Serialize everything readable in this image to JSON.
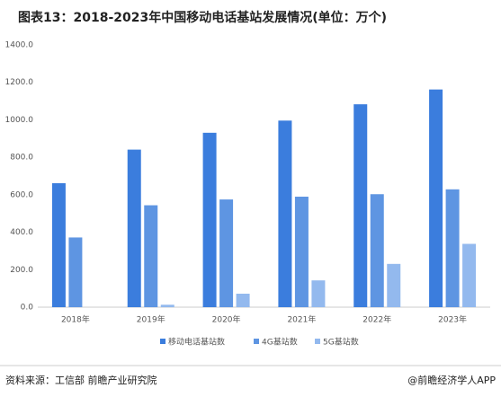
{
  "chart_data": {
    "type": "bar",
    "title": "图表13：2018-2023年中国移动电话基站发展情况(单位：万个)",
    "categories": [
      "2018年",
      "2019年",
      "2020年",
      "2021年",
      "2022年",
      "2023年"
    ],
    "series": [
      {
        "name": "移动电话基站数",
        "color": "#3b7ddd",
        "values": [
          662,
          841,
          931,
          996,
          1083,
          1162
        ]
      },
      {
        "name": "4G基站数",
        "color": "#5e95e2",
        "values": [
          372,
          544,
          575,
          590,
          603,
          629
        ]
      },
      {
        "name": "5G基站数",
        "color": "#93b9ee",
        "values": [
          null,
          13,
          72,
          143,
          231,
          338
        ]
      }
    ],
    "ylim": [
      0,
      1400
    ],
    "yticks": [
      {
        "value": 0,
        "label": "0.0"
      },
      {
        "value": 200,
        "label": "200.0"
      },
      {
        "value": 400,
        "label": "400.0"
      },
      {
        "value": 600,
        "label": "600.0"
      },
      {
        "value": 800,
        "label": "800.0"
      },
      {
        "value": 1000,
        "label": "1000.0"
      },
      {
        "value": 1200,
        "label": "1200.0"
      },
      {
        "value": 1400,
        "label": "1400.0"
      }
    ],
    "grid": false,
    "source": "资料来源：工信部 前瞻产业研究院",
    "credit": "@前瞻经济学人APP"
  }
}
